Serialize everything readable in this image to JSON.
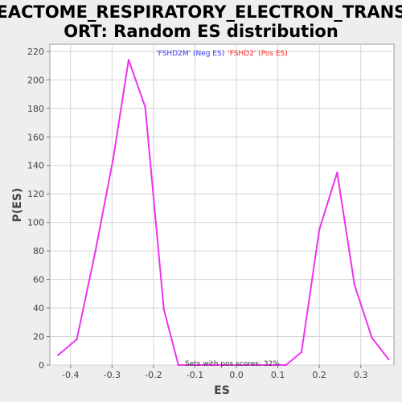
{
  "chart_data": {
    "type": "line",
    "title_line1": "REACTOME_RESPIRATORY_ELECTRON_TRANSP",
    "title_line2": "ORT: Random ES distribution",
    "xlabel": "ES",
    "ylabel": "P(ES)",
    "xlim": [
      -0.45,
      0.38
    ],
    "ylim": [
      0,
      225
    ],
    "xticks": [
      -0.4,
      -0.3,
      -0.2,
      -0.1,
      0.0,
      0.1,
      0.2,
      0.3
    ],
    "xtick_labels": [
      "-0.4",
      "-0.3",
      "-0.2",
      "-0.1",
      "0.0",
      "0.1",
      "0.2",
      "0.3"
    ],
    "yticks": [
      0,
      20,
      40,
      60,
      80,
      100,
      120,
      140,
      160,
      180,
      200,
      220
    ],
    "ytick_labels": [
      "0",
      "20",
      "40",
      "60",
      "80",
      "100",
      "120",
      "140",
      "160",
      "180",
      "200",
      "220"
    ],
    "grid": true,
    "legend": [
      {
        "text": "'FSHD2M' (Neg ES)",
        "color": "#3333ff"
      },
      {
        "text": "'FSHD2' (Pos ES)",
        "color": "#ff2222"
      }
    ],
    "legend_placement": "top-center",
    "annotation": "Sets with pos scores: 32%",
    "line_color": "#ee33ee",
    "series": [
      {
        "x": [
          -0.43,
          -0.385,
          -0.34,
          -0.297,
          -0.26,
          -0.22,
          -0.175,
          -0.14,
          -0.1,
          -0.05,
          0.0,
          0.05,
          0.12,
          0.157,
          0.2,
          0.243,
          0.285,
          0.327,
          0.367
        ],
        "y": [
          7,
          18,
          80,
          145,
          214,
          181,
          39,
          0,
          0,
          0,
          0,
          0,
          0,
          9,
          95,
          135,
          56,
          19,
          4
        ]
      }
    ]
  }
}
